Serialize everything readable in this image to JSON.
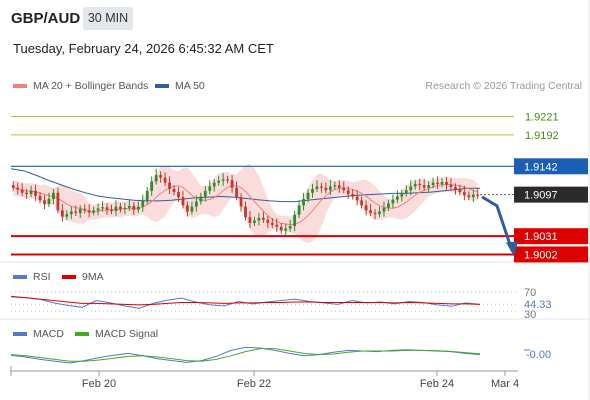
{
  "header": {
    "pair": "GBP/AUD",
    "timeframe": "30 MIN",
    "datetime": "Tuesday, February 24, 2026 6:45:32 AM CET"
  },
  "credit": "Research © 2026 Trading Central",
  "legend": {
    "main": [
      {
        "label": "MA 20 + Bollinger Bands",
        "color": "#f08080"
      },
      {
        "label": "MA 50",
        "color": "#2f5f99"
      }
    ],
    "rsi": [
      {
        "label": "RSI",
        "color": "#5577cc"
      },
      {
        "label": "9MA",
        "color": "#dd0000"
      }
    ],
    "macd": [
      {
        "label": "MACD",
        "color": "#5577cc"
      },
      {
        "label": "MACD Signal",
        "color": "#44aa22"
      }
    ]
  },
  "colors": {
    "up": "#2e8b2e",
    "down": "#c0392b",
    "resistance": "#9acd32",
    "pivot": "#1a5fb4",
    "support": "#dd0000",
    "bands": "#f9d0d0",
    "arrow": "#2f5f99"
  },
  "chart_data": [
    {
      "type": "candlestick",
      "title": "GBP/AUD",
      "x_ticks": [
        "Feb 20",
        "Feb 22",
        "Feb 24",
        "Mar 4"
      ],
      "ylim": [
        1.899,
        1.926
      ],
      "levels": [
        {
          "value": "1.9221",
          "kind": "resistance"
        },
        {
          "value": "1.9192",
          "kind": "resistance"
        },
        {
          "value": "1.9142",
          "kind": "pivot"
        },
        {
          "value": "1.9097",
          "kind": "last"
        },
        {
          "value": "1.9031",
          "kind": "support"
        },
        {
          "value": "1.9002",
          "kind": "support"
        }
      ],
      "close_series": [
        1.9108,
        1.9105,
        1.91,
        1.9098,
        1.9103,
        1.9095,
        1.9088,
        1.9082,
        1.909,
        1.91,
        1.9072,
        1.9062,
        1.9066,
        1.907,
        1.9068,
        1.9074,
        1.9072,
        1.9069,
        1.9072,
        1.9075,
        1.9077,
        1.9073,
        1.9071,
        1.9078,
        1.9074,
        1.9076,
        1.9079,
        1.9073,
        1.9078,
        1.9087,
        1.9103,
        1.9118,
        1.9128,
        1.9124,
        1.9116,
        1.9106,
        1.9101,
        1.9093,
        1.908,
        1.907,
        1.9078,
        1.9086,
        1.9094,
        1.9103,
        1.911,
        1.9116,
        1.9119,
        1.9121,
        1.912,
        1.9108,
        1.9093,
        1.9078,
        1.9061,
        1.9052,
        1.9056,
        1.906,
        1.9057,
        1.9052,
        1.9049,
        1.9046,
        1.904,
        1.9043,
        1.9047,
        1.9065,
        1.908,
        1.909,
        1.91,
        1.9106,
        1.911,
        1.9108,
        1.9104,
        1.911,
        1.9112,
        1.9108,
        1.9104,
        1.9098,
        1.9094,
        1.9088,
        1.908,
        1.9072,
        1.9068,
        1.9066,
        1.907,
        1.9076,
        1.9083,
        1.9089,
        1.9094,
        1.9099,
        1.9104,
        1.911,
        1.9114,
        1.9112,
        1.9108,
        1.9112,
        1.9116,
        1.9114,
        1.9117,
        1.9113,
        1.9109,
        1.9105,
        1.9101,
        1.9096,
        1.9093,
        1.9097,
        1.9095
      ],
      "ma50_series": [
        1.9138,
        1.9135,
        1.9128,
        1.912,
        1.9113,
        1.9106,
        1.91,
        1.9095,
        1.9092,
        1.909,
        1.9088,
        1.9087,
        1.9087,
        1.9088,
        1.909,
        1.9092,
        1.9093,
        1.9094,
        1.9093,
        1.9091,
        1.9089,
        1.9087,
        1.9086,
        1.9086,
        1.9088,
        1.909,
        1.9092,
        1.9094,
        1.9096,
        1.9097,
        1.9098,
        1.9099,
        1.9099,
        1.91,
        1.9101,
        1.9103,
        1.9105,
        1.9107,
        1.9107
      ]
    },
    {
      "type": "line",
      "title": "RSI",
      "y_ticks": [
        "70",
        "44.33",
        "30"
      ],
      "ylim": [
        20,
        80
      ],
      "series": [
        {
          "name": "RSI",
          "values": [
            61,
            58,
            55,
            47,
            42,
            38,
            52,
            47,
            41,
            36,
            46,
            53,
            57,
            49,
            43,
            41,
            50,
            45,
            49,
            52,
            55,
            50,
            47,
            44,
            52,
            47,
            49,
            45,
            50,
            48,
            43,
            40,
            47,
            44
          ]
        },
        {
          "name": "9MA",
          "values": [
            60,
            58,
            55,
            52,
            49,
            46,
            46,
            45,
            44,
            43,
            44,
            46,
            48,
            48,
            47,
            46,
            47,
            47,
            48,
            48,
            49,
            49,
            48,
            48,
            48,
            48,
            48,
            47,
            48,
            47,
            46,
            45,
            45,
            44
          ]
        }
      ]
    },
    {
      "type": "line",
      "title": "MACD",
      "y_ticks": [
        "-0.00"
      ],
      "ylim": [
        -1,
        1
      ],
      "series": [
        {
          "name": "MACD",
          "values": [
            -0.1,
            -0.25,
            -0.45,
            -0.6,
            -0.75,
            -0.55,
            -0.3,
            -0.1,
            0.05,
            -0.15,
            -0.4,
            -0.55,
            -0.7,
            -0.55,
            -0.2,
            0.3,
            0.55,
            0.5,
            0.3,
            0.05,
            -0.15,
            -0.05,
            0.15,
            0.3,
            0.25,
            0.2,
            0.3,
            0.35,
            0.3,
            0.25,
            0.2,
            0.05,
            -0.05
          ]
        },
        {
          "name": "MACD Signal",
          "values": [
            -0.05,
            -0.15,
            -0.3,
            -0.45,
            -0.6,
            -0.6,
            -0.5,
            -0.35,
            -0.2,
            -0.15,
            -0.25,
            -0.4,
            -0.55,
            -0.6,
            -0.45,
            -0.15,
            0.2,
            0.45,
            0.45,
            0.25,
            0.05,
            -0.05,
            0.0,
            0.15,
            0.25,
            0.25,
            0.25,
            0.3,
            0.3,
            0.28,
            0.22,
            0.12,
            0.02
          ]
        }
      ]
    }
  ]
}
